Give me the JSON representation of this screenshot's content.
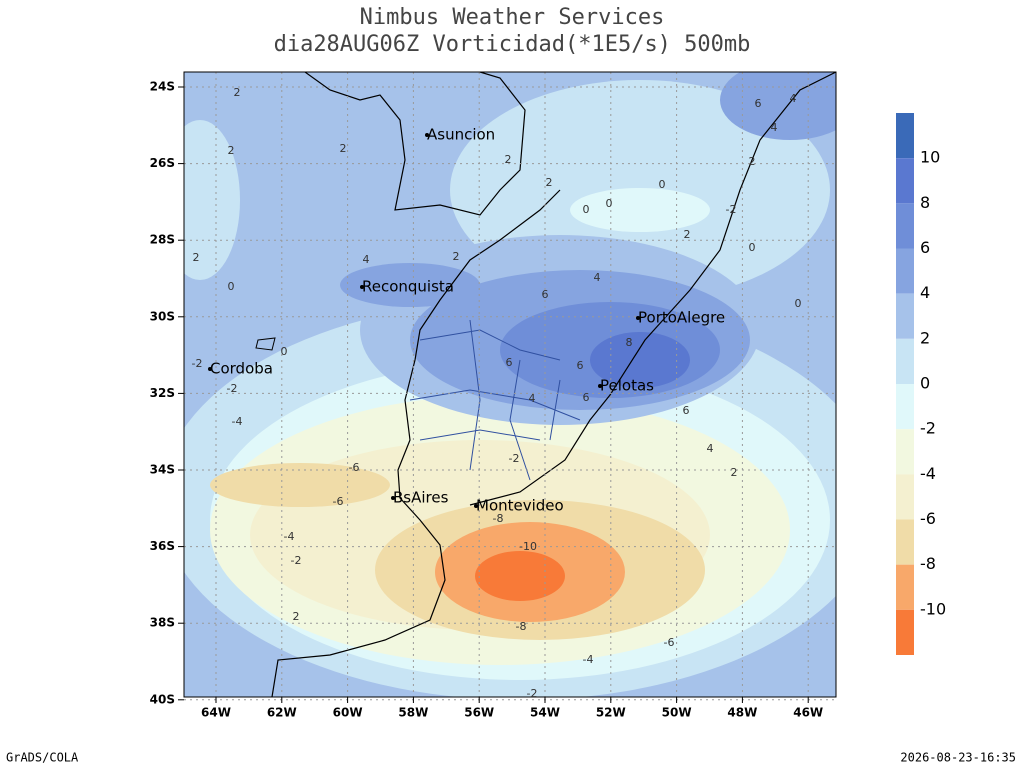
{
  "header": {
    "title": "Nimbus Weather Services",
    "subtitle": "dia28AUG06Z Vorticidad(*1E5/s) 500mb"
  },
  "map": {
    "lat_labels": [
      "24S",
      "26S",
      "28S",
      "30S",
      "32S",
      "34S",
      "36S",
      "38S",
      "40S"
    ],
    "lon_labels": [
      "64W",
      "62W",
      "60W",
      "58W",
      "56W",
      "54W",
      "52W",
      "50W",
      "48W",
      "46W"
    ],
    "cities": [
      "Asuncion",
      "Reconquista",
      "Cordoba",
      "PortoAlegre",
      "Pelotas",
      "BsAires",
      "Montevideo"
    ],
    "contour_labels": [
      "2",
      "2",
      "2",
      "2",
      "0",
      "0",
      "2",
      "2",
      "4",
      "2",
      "0",
      "0",
      "-2",
      "0",
      "0",
      "0",
      "-2",
      "-2",
      "-4",
      "4",
      "6",
      "6",
      "6",
      "8",
      "6",
      "6",
      "4",
      "4",
      "2",
      "-6",
      "-6",
      "-4",
      "-2",
      "-2",
      "-8",
      "-10",
      "-8",
      "-6",
      "-4",
      "-2",
      "4",
      "6",
      "4",
      "2",
      "2",
      "2"
    ]
  },
  "colorbar": {
    "labels": [
      "10",
      "8",
      "6",
      "4",
      "2",
      "0",
      "-2",
      "-4",
      "-6",
      "-8",
      "-10"
    ]
  },
  "footer": {
    "left": "GrADS/COLA",
    "right": "2026-08-23-16:35"
  }
}
